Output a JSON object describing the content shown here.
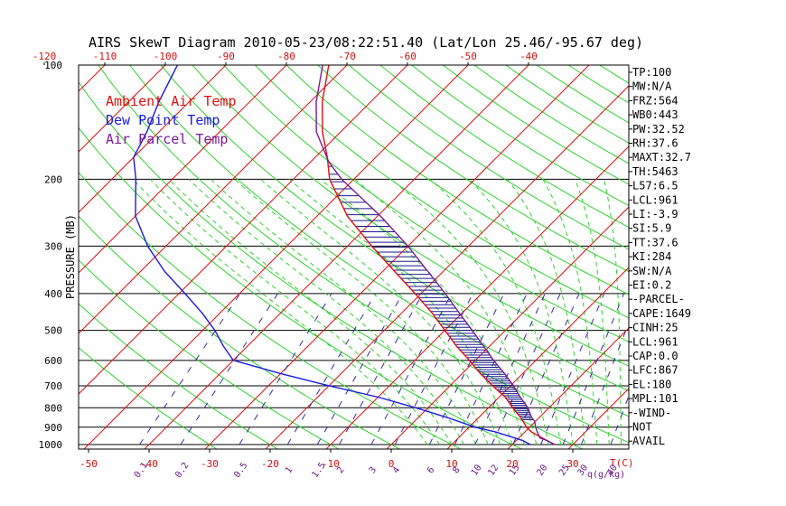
{
  "chart_data": {
    "type": "line",
    "title": "AIRS SkewT Diagram 2010-05-23/08:22:51.40 (Lat/Lon 25.46/-95.67 deg)",
    "ylabel": "PRESSURE (MB)",
    "bottom_axis_unit": "T(C)",
    "mixing_ratio_unit": "q(g/kg)",
    "pressure_ticks": [
      100,
      200,
      300,
      400,
      500,
      600,
      700,
      800,
      900,
      1000
    ],
    "bottom_temp_ticks": [
      -50,
      -40,
      -30,
      -20,
      -10,
      0,
      10,
      20,
      30
    ],
    "top_temp_ticks": [
      -120,
      -110,
      -100,
      -90,
      -80,
      -70,
      -60,
      -50,
      -40
    ],
    "mixing_ratio_labels": [
      "0.1",
      "0.2",
      "0.5",
      "1",
      "1.5",
      "2",
      "3",
      "4",
      "6",
      "8",
      "10",
      "12",
      "15",
      "20",
      "25",
      "30",
      "40"
    ],
    "legend": [
      {
        "label": "Ambient Air Temp",
        "color": "#e01010"
      },
      {
        "label": "Dew Point Temp",
        "color": "#1a1ae0"
      },
      {
        "label": "Air Parcel Temp",
        "color": "#7a1a9a"
      }
    ],
    "series": [
      {
        "name": "Ambient Air Temp",
        "color": "#e01010",
        "p": [
          1000,
          975,
          950,
          925,
          900,
          850,
          800,
          750,
          700,
          650,
          600,
          550,
          500,
          450,
          400,
          350,
          300,
          250,
          200,
          175,
          150,
          125,
          100
        ],
        "t": [
          27,
          25,
          23,
          21,
          19.5,
          17,
          14,
          11,
          7,
          3,
          -1,
          -5.5,
          -10,
          -15,
          -21,
          -28,
          -36,
          -45,
          -54,
          -58,
          -63,
          -68,
          -73
        ]
      },
      {
        "name": "Dew Point Temp",
        "color": "#1a1ae0",
        "p": [
          1000,
          975,
          950,
          925,
          900,
          850,
          800,
          750,
          700,
          650,
          600,
          550,
          500,
          450,
          400,
          350,
          300,
          250,
          200,
          175,
          150,
          125,
          100
        ],
        "t": [
          23,
          21,
          18,
          15,
          11,
          5,
          -2,
          -10,
          -20,
          -30,
          -40,
          -44,
          -48,
          -53,
          -59,
          -66,
          -73,
          -80,
          -86,
          -90,
          -92,
          -95,
          -98
        ]
      },
      {
        "name": "Air Parcel Temp",
        "color": "#7a1a9a",
        "p": [
          1000,
          975,
          961,
          925,
          900,
          867,
          850,
          800,
          750,
          700,
          650,
          600,
          550,
          500,
          450,
          400,
          350,
          300,
          250,
          200,
          180,
          150,
          125,
          100
        ],
        "t": [
          27,
          25,
          23.5,
          22,
          21,
          19.8,
          18.8,
          16.5,
          13.5,
          10.5,
          7,
          3,
          -1,
          -5.5,
          -10.5,
          -16,
          -22.5,
          -30,
          -39.5,
          -52,
          -57,
          -64,
          -69,
          -74
        ]
      }
    ],
    "indices": [
      "TP:100",
      "MW:N/A",
      "FRZ:564",
      "WB0:443",
      "PW:32.52",
      "RH:37.6",
      "MAXT:32.7",
      "TH:5463",
      "L57:6.5",
      "LCL:961",
      "LI:-3.9",
      "SI:5.9",
      "TT:37.6",
      "KI:284",
      "SW:N/A",
      "EI:0.2",
      "-PARCEL-",
      "CAPE:1649",
      "CINH:25",
      "LCL:961",
      "CAP:0.0",
      "LFC:867",
      "EL:180",
      "MPL:101",
      "-WIND-",
      "NOT",
      "AVAIL"
    ]
  }
}
